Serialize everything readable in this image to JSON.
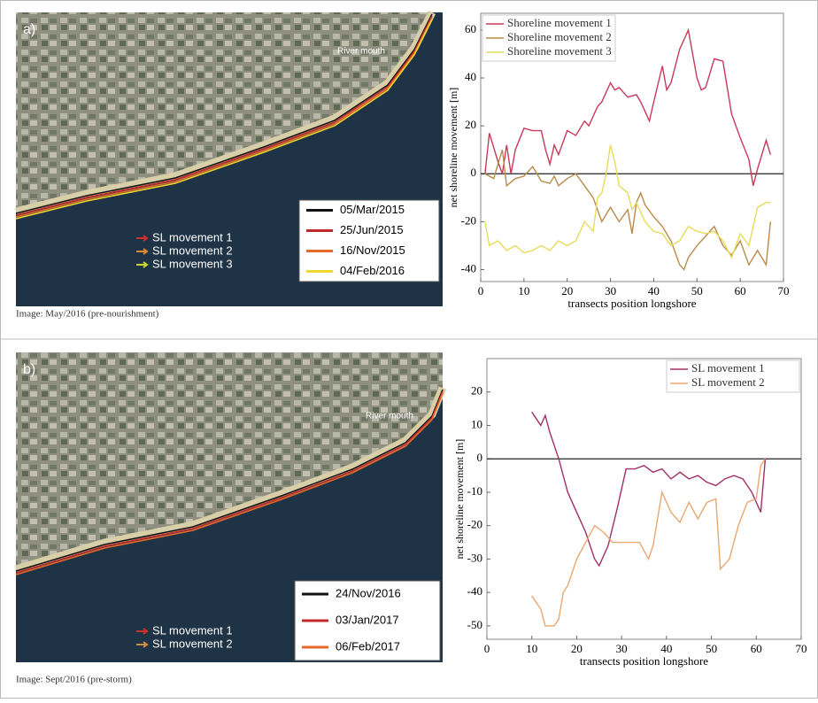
{
  "chart_data": [
    {
      "type": "line",
      "xlabel": "transects position longshore",
      "ylabel": "net shoreline movement [m]",
      "xlim": [
        0,
        70
      ],
      "ylim": [
        -45,
        67
      ],
      "xticks": [
        0,
        10,
        20,
        30,
        40,
        50,
        60,
        70
      ],
      "yticks": [
        -40,
        -20,
        0,
        20,
        40,
        60
      ],
      "legend": "upper-left",
      "series": [
        {
          "name": "Shoreline movement 1",
          "color": "#c8395a",
          "x": [
            1,
            2,
            4,
            5,
            6,
            7,
            8,
            10,
            12,
            14,
            15,
            16,
            17,
            18,
            20,
            22,
            24,
            25,
            27,
            28,
            30,
            31,
            32,
            34,
            36,
            37,
            39,
            40,
            42,
            43,
            44,
            46,
            48,
            50,
            51,
            52,
            54,
            56,
            58,
            60,
            62,
            63,
            64,
            66,
            67
          ],
          "values": [
            0,
            17,
            5,
            0,
            12,
            0,
            10,
            19,
            18,
            18,
            10,
            4,
            12,
            8,
            18,
            16,
            22,
            20,
            28,
            30,
            38,
            35,
            36,
            32,
            33,
            30,
            22,
            30,
            45,
            35,
            38,
            52,
            60,
            40,
            35,
            36,
            48,
            47,
            25,
            15,
            6,
            -5,
            2,
            14,
            8
          ]
        },
        {
          "name": "Shoreline movement 2",
          "color": "#b98a4a",
          "x": [
            1,
            3,
            5,
            6,
            8,
            10,
            12,
            14,
            16,
            17,
            18,
            20,
            22,
            24,
            26,
            28,
            30,
            32,
            34,
            35,
            36,
            37,
            38,
            40,
            42,
            44,
            46,
            47,
            48,
            50,
            52,
            54,
            56,
            58,
            60,
            62,
            64,
            66,
            67
          ],
          "values": [
            0,
            -2,
            10,
            -5,
            -2,
            -1,
            3,
            -3,
            -4,
            -1,
            -5,
            -2,
            0,
            -5,
            -10,
            -20,
            -14,
            -20,
            -15,
            -25,
            -12,
            -8,
            -13,
            -18,
            -22,
            -28,
            -38,
            -40,
            -35,
            -30,
            -26,
            -22,
            -30,
            -34,
            -28,
            -38,
            -32,
            -38,
            -20
          ]
        },
        {
          "name": "Shoreline movement 3",
          "color": "#e6dc5a",
          "x": [
            1,
            2,
            4,
            6,
            8,
            10,
            12,
            14,
            16,
            18,
            20,
            22,
            24,
            26,
            27,
            28,
            29,
            30,
            31,
            32,
            34,
            35,
            36,
            38,
            40,
            42,
            44,
            46,
            48,
            50,
            52,
            54,
            56,
            58,
            60,
            62,
            64,
            66,
            67
          ],
          "values": [
            -20,
            -30,
            -28,
            -32,
            -30,
            -33,
            -32,
            -30,
            -32,
            -28,
            -30,
            -28,
            -20,
            -24,
            -10,
            -8,
            0,
            12,
            5,
            -5,
            -8,
            -15,
            -12,
            -20,
            -24,
            -25,
            -30,
            -28,
            -22,
            -24,
            -25,
            -24,
            -28,
            -35,
            -25,
            -30,
            -14,
            -12,
            -12
          ]
        }
      ]
    },
    {
      "type": "line",
      "xlabel": "transects position longshore",
      "ylabel": "net shoreline movement [m]",
      "xlim": [
        0,
        70
      ],
      "ylim": [
        -54,
        30
      ],
      "xticks": [
        0,
        10,
        20,
        30,
        40,
        50,
        60,
        70
      ],
      "yticks": [
        -50,
        -40,
        -30,
        -20,
        -10,
        0,
        10,
        20
      ],
      "legend": "upper-right",
      "series": [
        {
          "name": "SL movement 1",
          "color": "#a0306a",
          "x": [
            10,
            11,
            12,
            13,
            14,
            16,
            17,
            18,
            20,
            22,
            24,
            25,
            27,
            29,
            31,
            33,
            35,
            37,
            39,
            41,
            43,
            45,
            47,
            49,
            51,
            53,
            55,
            57,
            59,
            61,
            62
          ],
          "values": [
            14,
            12,
            10,
            13,
            8,
            0,
            -5,
            -10,
            -16,
            -22,
            -30,
            -32,
            -26,
            -15,
            -3,
            -3,
            -2,
            -4,
            -3,
            -6,
            -4,
            -6,
            -5,
            -7,
            -8,
            -6,
            -5,
            -6,
            -10,
            -16,
            0
          ]
        },
        {
          "name": "SL movement 2",
          "color": "#e8a870",
          "x": [
            10,
            12,
            13,
            15,
            16,
            17,
            18,
            20,
            22,
            24,
            26,
            28,
            30,
            32,
            34,
            36,
            37,
            39,
            41,
            43,
            45,
            47,
            49,
            51,
            52,
            54,
            56,
            58,
            60,
            61,
            62
          ],
          "values": [
            -41,
            -45,
            -50,
            -50,
            -48,
            -40,
            -38,
            -30,
            -25,
            -20,
            -22,
            -25,
            -25,
            -25,
            -25,
            -30,
            -26,
            -10,
            -16,
            -19,
            -13,
            -18,
            -13,
            -12,
            -33,
            -30,
            -20,
            -13,
            -12,
            -2,
            0
          ]
        }
      ]
    }
  ],
  "images": [
    {
      "label": "a)",
      "place": "River mouth",
      "caption": "Image: May/2016 (pre-nourishment)",
      "dates": [
        {
          "name": "05/Mar/2015",
          "color": "#111111"
        },
        {
          "name": "25/Jun/2015",
          "color": "#c0282a"
        },
        {
          "name": "16/Nov/2015",
          "color": "#e86a2a"
        },
        {
          "name": "04/Feb/2016",
          "color": "#f0d830"
        }
      ],
      "arrows": [
        {
          "name": "SL movement 1",
          "color": "#d0302a"
        },
        {
          "name": "SL movement 2",
          "color": "#e08a30"
        },
        {
          "name": "SL movement 3",
          "color": "#c8d830"
        }
      ]
    },
    {
      "label": "b)",
      "place": "River mouth",
      "caption": "Image: Sept/2016 (pre-storm)",
      "dates": [
        {
          "name": "24/Nov/2016",
          "color": "#111111"
        },
        {
          "name": "03/Jan/2017",
          "color": "#c0282a"
        },
        {
          "name": "06/Feb/2017",
          "color": "#e86a2a"
        }
      ],
      "arrows": [
        {
          "name": "SL movement 1",
          "color": "#d0302a"
        },
        {
          "name": "SL movement 2",
          "color": "#c89040"
        }
      ]
    }
  ]
}
